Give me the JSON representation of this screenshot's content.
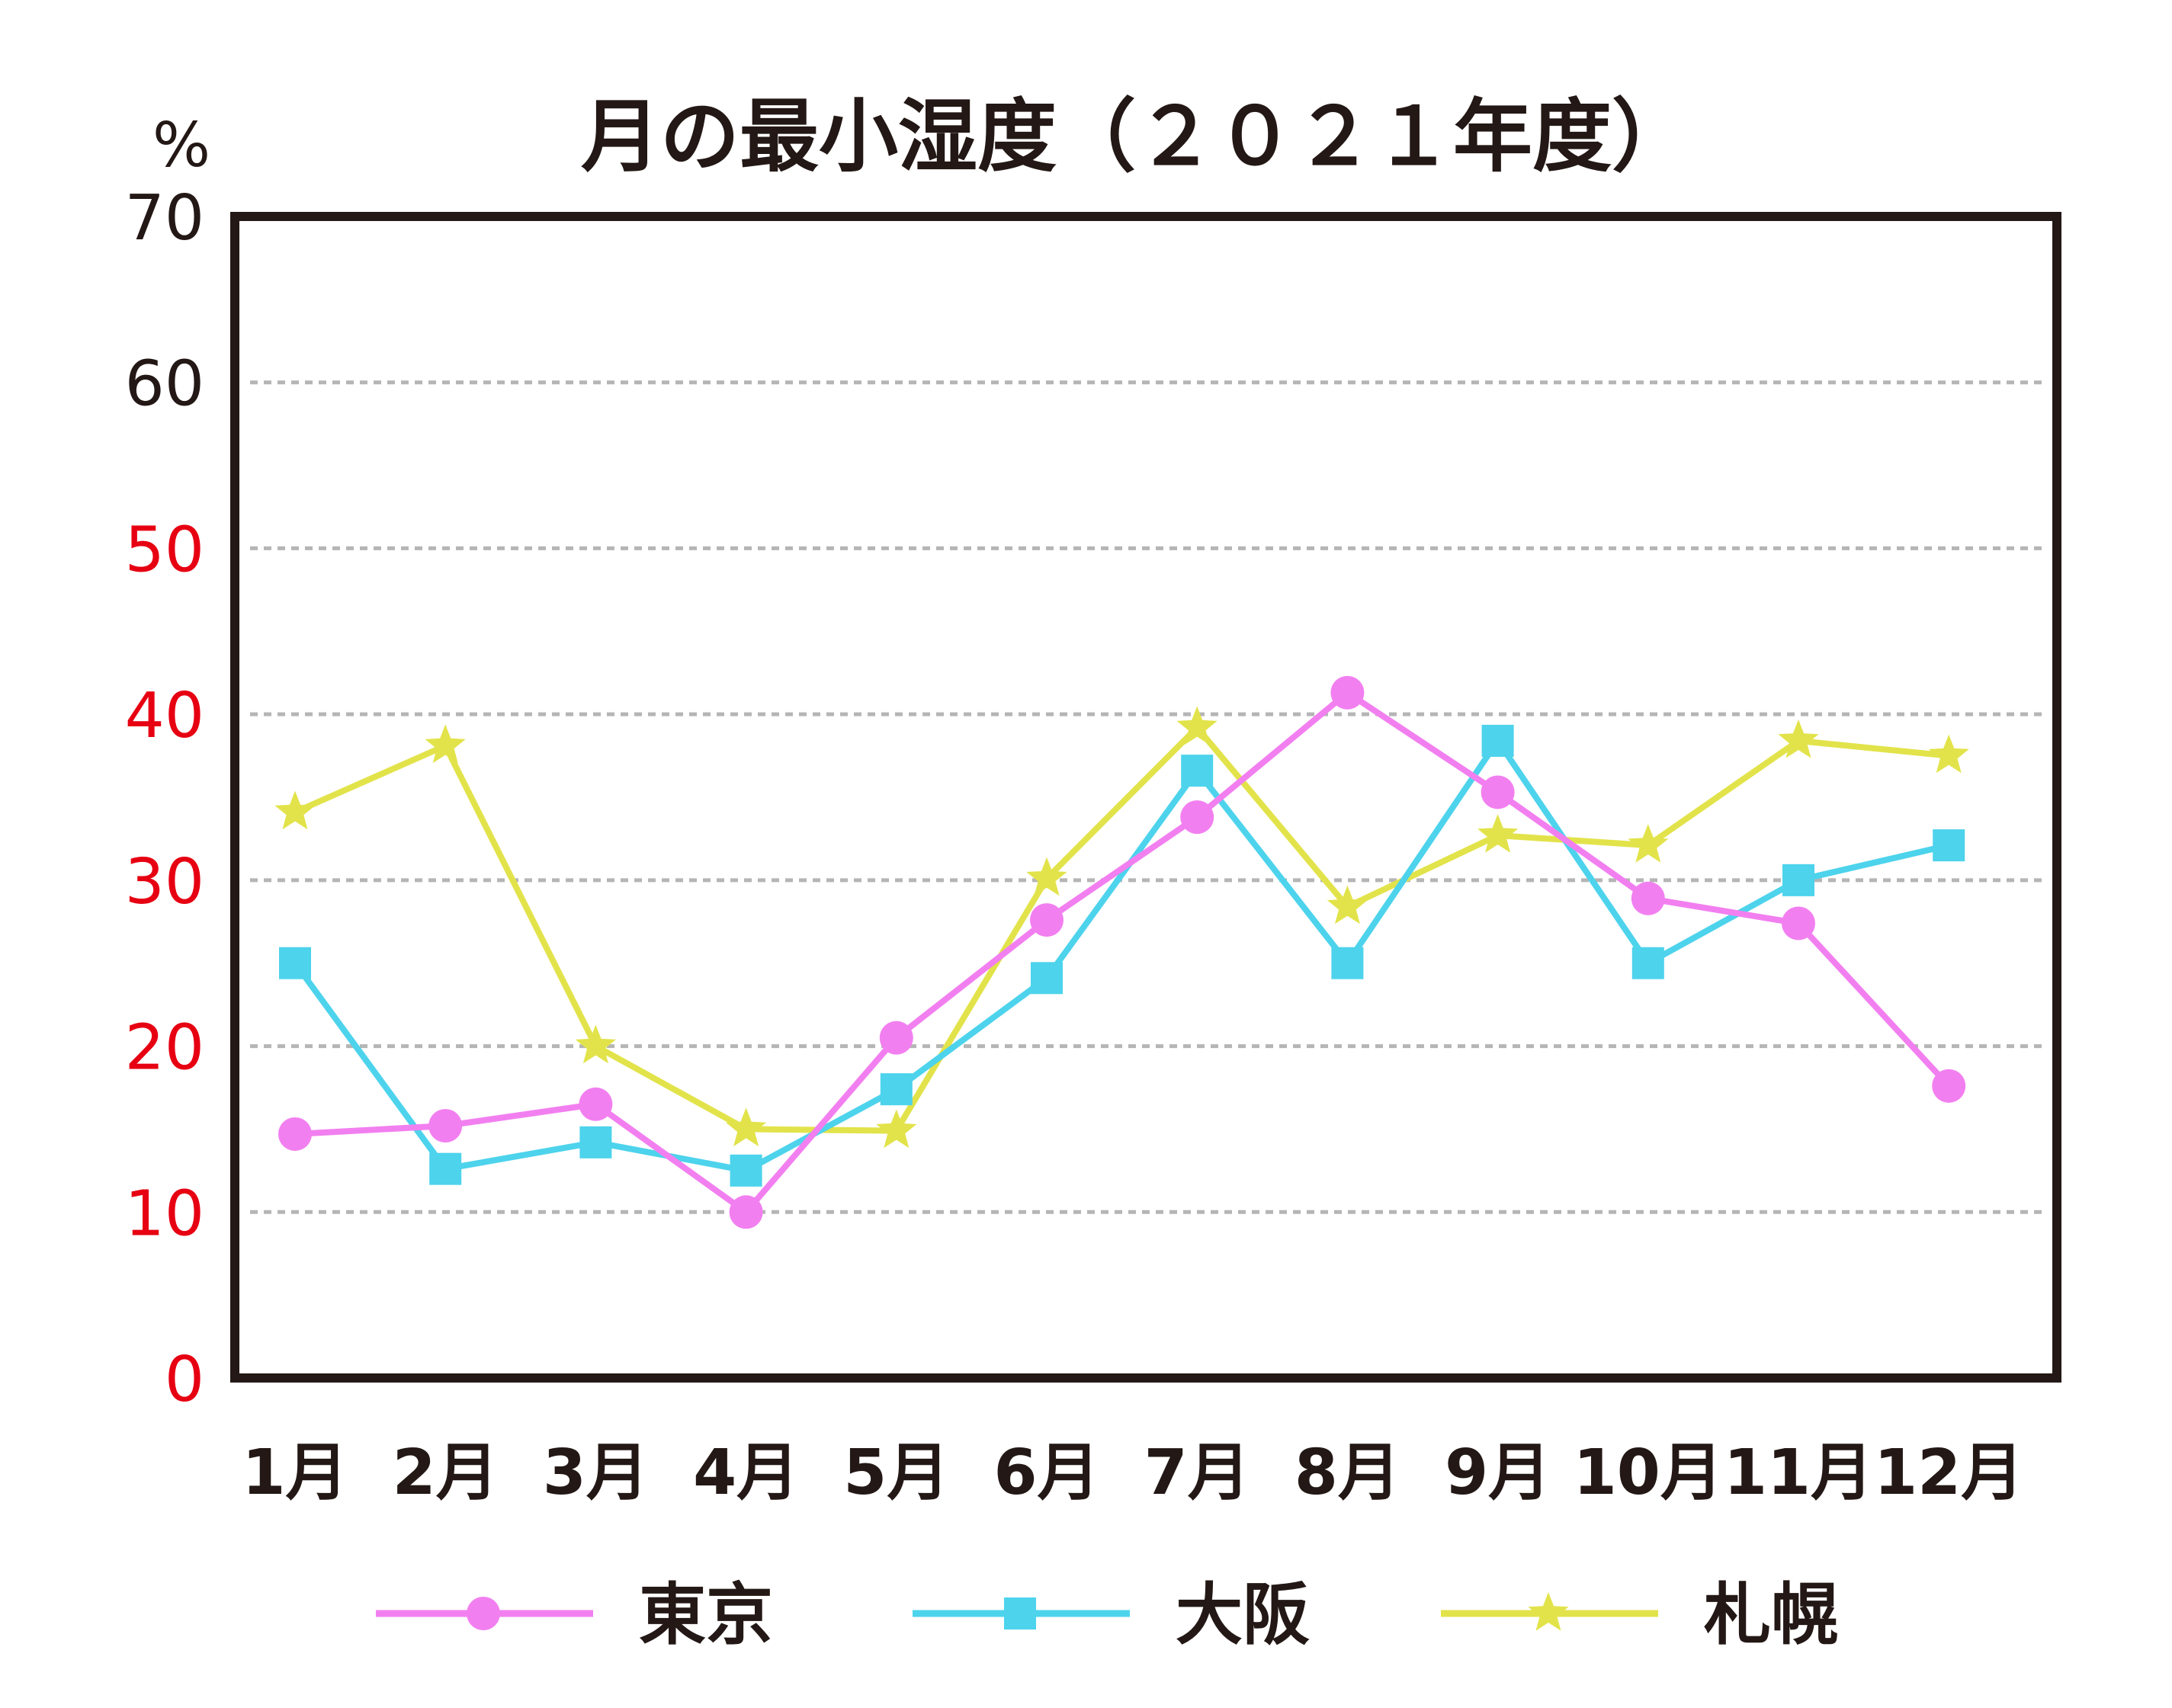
{
  "chart_data": {
    "type": "line",
    "title": "月の最小湿度（２０２１年度）",
    "ylabel": "%",
    "xlabel": "",
    "ylim": [
      0,
      70
    ],
    "yticks": [
      {
        "label": "70",
        "value": 70,
        "color": "#231815"
      },
      {
        "label": "60",
        "value": 60,
        "color": "#231815"
      },
      {
        "label": "50",
        "value": 50,
        "color": "#e60012"
      },
      {
        "label": "40",
        "value": 40,
        "color": "#e60012"
      },
      {
        "label": "30",
        "value": 30,
        "color": "#e60012"
      },
      {
        "label": "20",
        "value": 20,
        "color": "#e60012"
      },
      {
        "label": "10",
        "value": 10,
        "color": "#e60012"
      },
      {
        "label": "0",
        "value": 0,
        "color": "#e60012"
      }
    ],
    "categories": [
      "1月",
      "2月",
      "3月",
      "4月",
      "5月",
      "6月",
      "7月",
      "8月",
      "9月",
      "10月",
      "11月",
      "12月"
    ],
    "grid": true,
    "legend_position": "bottom",
    "series": [
      {
        "name": "東京",
        "color": "#f27ff0",
        "marker": "circle",
        "values": [
          14.7,
          15.2,
          16.5,
          10.0,
          20.5,
          27.6,
          33.8,
          41.3,
          35.3,
          28.9,
          27.4,
          17.6
        ]
      },
      {
        "name": "大阪",
        "color": "#4dd3ec",
        "marker": "square",
        "values": [
          25.0,
          12.6,
          14.2,
          12.5,
          17.4,
          24.1,
          36.6,
          25.0,
          38.4,
          25.0,
          30.0,
          32.1
        ]
      },
      {
        "name": "札幌",
        "color": "#e2e34a",
        "marker": "star",
        "values": [
          34.1,
          38.1,
          20.0,
          15.0,
          14.9,
          30.1,
          39.2,
          28.4,
          32.7,
          32.1,
          38.4,
          37.5
        ]
      }
    ]
  }
}
